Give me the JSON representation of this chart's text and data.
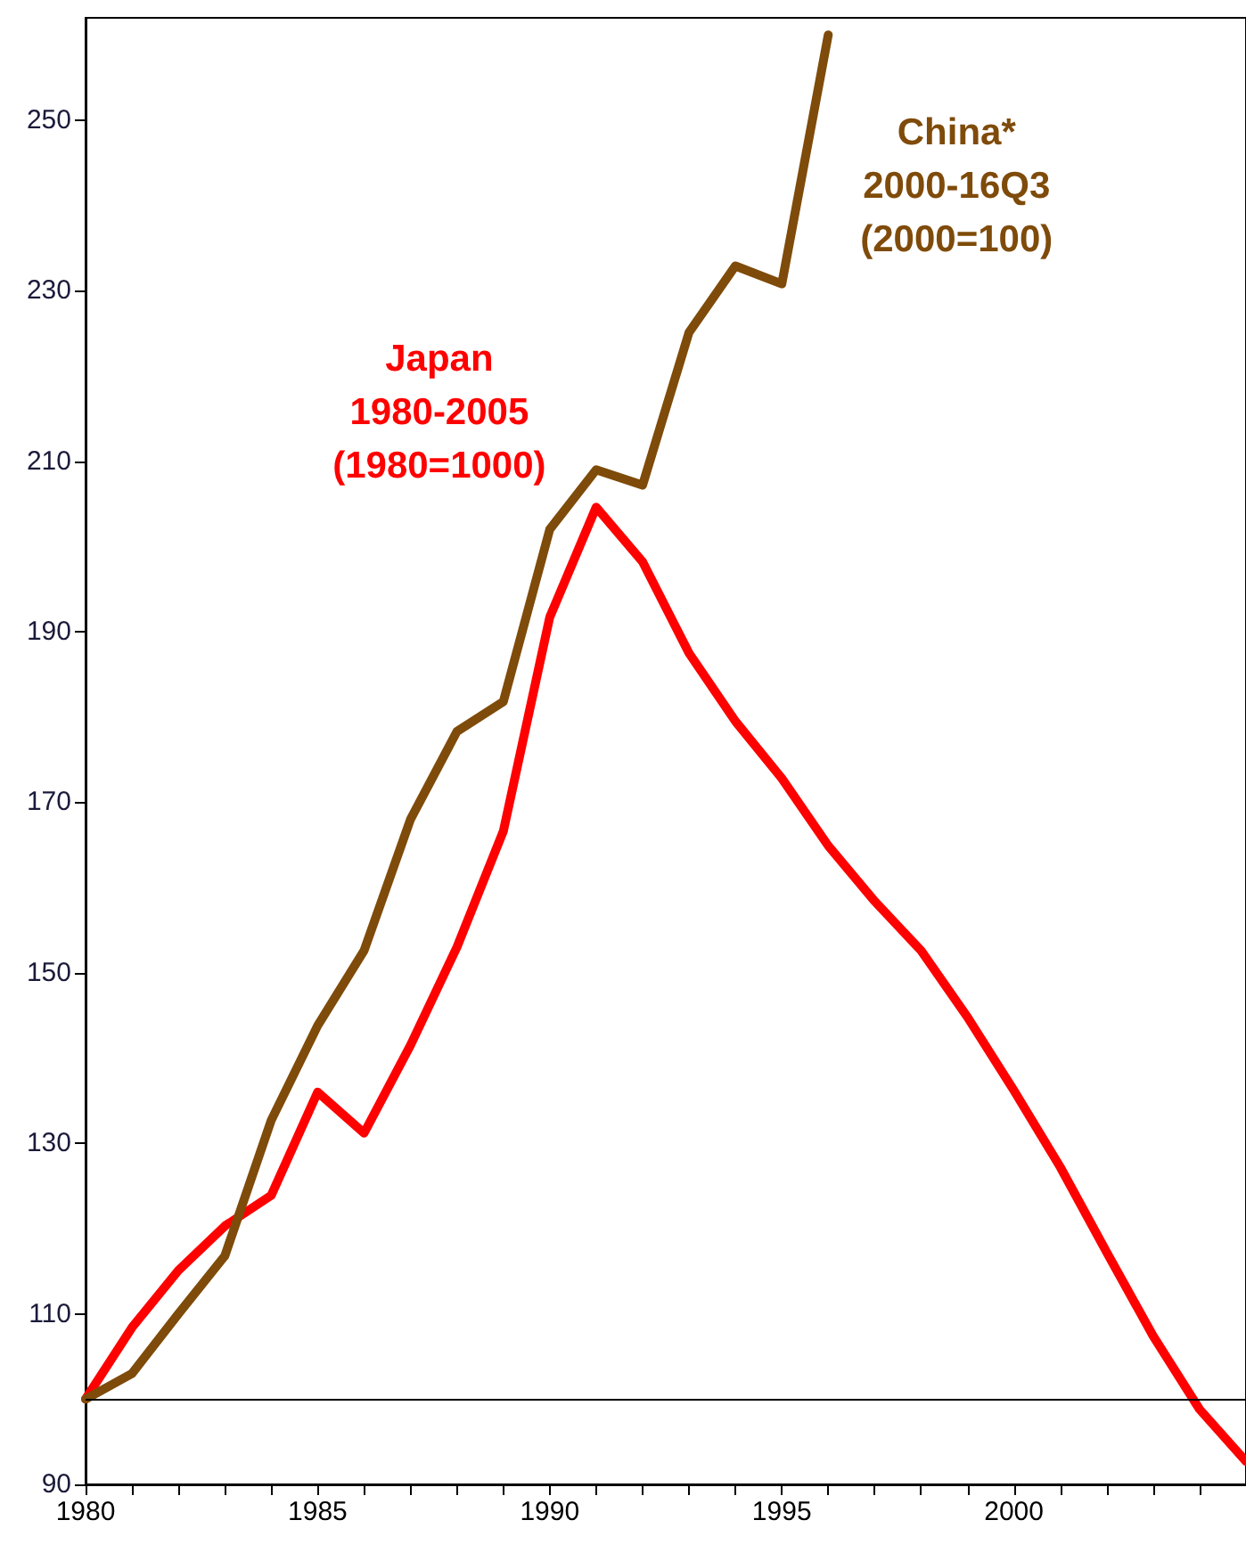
{
  "chart_data": {
    "type": "line",
    "x": [
      1980,
      1981,
      1982,
      1983,
      1984,
      1985,
      1986,
      1987,
      1988,
      1989,
      1990,
      1991,
      1992,
      1993,
      1994,
      1995,
      1996,
      1997,
      1998,
      1999,
      2000,
      2001,
      2002,
      2003,
      2004,
      2005
    ],
    "series": [
      {
        "name": "Japan 1980-2005 (1980=1000)",
        "color": "#ff0000",
        "values": [
          100,
          108.4,
          115.1,
          120.3,
          123.9,
          136,
          131.2,
          141.5,
          153,
          166.6,
          191.7,
          204.6,
          198.2,
          187.5,
          179.5,
          172.8,
          164.9,
          158.4,
          152.6,
          144.8,
          136.2,
          127.2,
          117.2,
          107.4,
          98.8,
          92.7
        ]
      },
      {
        "name": "China* 2000-16Q3 (2000=100)",
        "color": "#7f4b0a",
        "values": [
          100,
          103,
          110,
          116.8,
          132.7,
          143.8,
          152.6,
          168,
          178.3,
          181.8,
          202,
          209,
          207.2,
          225.1,
          232.9,
          230.8,
          260,
          null,
          null,
          null,
          null,
          null,
          null,
          null,
          null,
          null
        ]
      }
    ],
    "xlim": [
      1980,
      2005
    ],
    "xticks": [
      1980,
      {
        "value": 1981,
        "label": null
      },
      {
        "value": 1982,
        "label": null
      },
      {
        "value": 1983,
        "label": null
      },
      {
        "value": 1984,
        "label": null
      },
      1985,
      {
        "value": 1986,
        "label": null
      },
      {
        "value": 1987,
        "label": null
      },
      {
        "value": 1988,
        "label": null
      },
      {
        "value": 1989,
        "label": null
      },
      1990,
      {
        "value": 1991,
        "label": null
      },
      {
        "value": 1992,
        "label": null
      },
      {
        "value": 1993,
        "label": null
      },
      {
        "value": 1994,
        "label": null
      },
      1995,
      {
        "value": 1996,
        "label": null
      },
      {
        "value": 1997,
        "label": null
      },
      {
        "value": 1998,
        "label": null
      },
      {
        "value": 1999,
        "label": null
      },
      2000,
      {
        "value": 2001,
        "label": null
      },
      {
        "value": 2002,
        "label": null
      },
      {
        "value": 2003,
        "label": null
      },
      {
        "value": 2004,
        "label": null
      }
    ],
    "ylim": [
      90,
      262
    ],
    "yticks": [
      90,
      110,
      130,
      150,
      170,
      190,
      210,
      230,
      250
    ],
    "ref_lines": [
      {
        "axis": "y",
        "value": 100,
        "color": "#000000"
      }
    ],
    "grid": false,
    "legend": false,
    "marker": "none",
    "line_style": "solid"
  }
}
